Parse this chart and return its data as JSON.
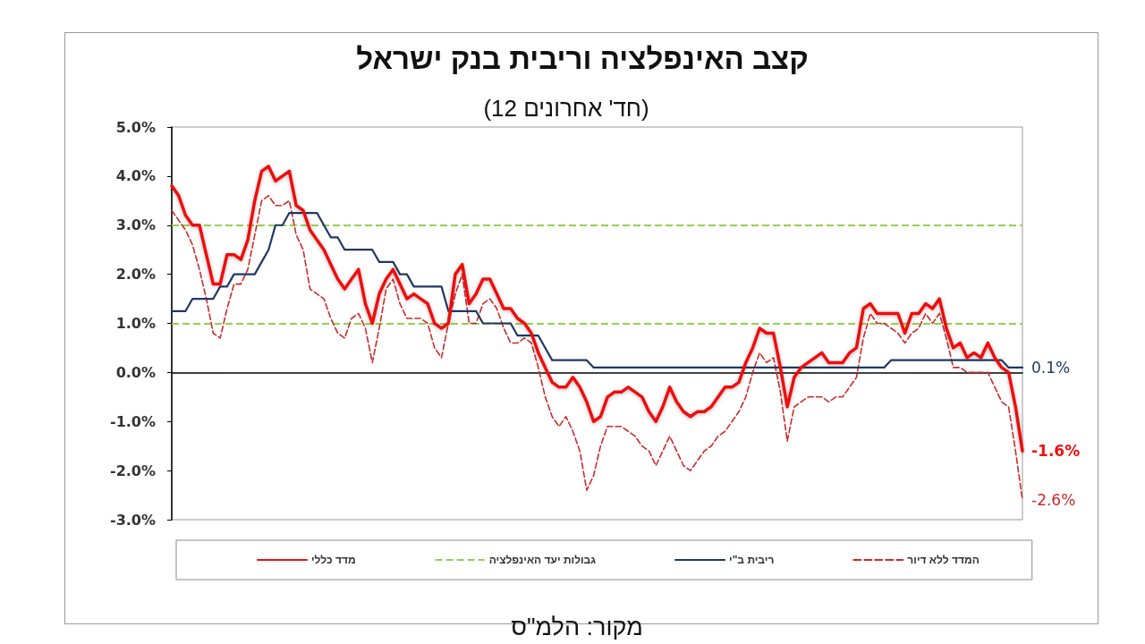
{
  "chart_data": {
    "type": "line",
    "title": "קצב האינפלציה וריבית בנק ישראל",
    "subtitle": "(12 חד' אחרונים)",
    "annotations": [
      "מקור: הלמ\"ס"
    ],
    "categories": [
      null,
      null,
      null,
      null,
      null,
      null,
      null,
      null,
      null,
      null,
      null,
      null,
      null,
      null,
      null,
      null,
      null,
      null,
      null,
      null,
      null,
      null,
      null,
      null,
      null,
      null,
      null,
      null,
      null,
      null,
      null,
      null,
      null,
      null,
      null,
      null,
      null,
      null,
      null,
      null,
      null,
      null,
      null,
      null,
      null,
      null,
      null,
      null,
      null,
      null,
      null,
      null,
      null,
      null,
      null,
      null,
      null,
      null,
      null,
      null,
      null,
      null,
      null,
      null,
      null,
      null,
      null,
      null,
      null,
      null,
      null,
      null,
      null,
      null,
      null,
      null,
      null,
      null,
      null,
      null,
      null,
      null,
      null,
      null,
      null,
      null,
      null,
      null,
      null,
      null,
      null,
      null,
      null,
      null,
      null,
      null,
      null,
      null,
      null,
      null,
      null,
      null,
      null,
      null,
      null,
      null,
      null,
      null,
      null,
      null,
      null,
      null,
      null,
      null,
      null,
      null,
      null,
      null,
      null,
      null,
      null,
      null,
      null,
      null
    ],
    "series": [
      {
        "name": "מדד כללי",
        "color": "#ee1111",
        "values": [
          3.8,
          3.6,
          3.2,
          3.0,
          3.0,
          2.4,
          1.8,
          1.8,
          2.4,
          2.4,
          2.3,
          2.7,
          3.5,
          4.1,
          4.2,
          3.9,
          4.0,
          4.1,
          3.4,
          3.3,
          2.9,
          2.7,
          2.5,
          2.2,
          1.9,
          1.7,
          1.9,
          2.1,
          1.4,
          1.0,
          1.6,
          1.9,
          2.1,
          1.8,
          1.5,
          1.6,
          1.5,
          1.4,
          1.0,
          0.9,
          1.0,
          2.0,
          2.2,
          1.4,
          1.6,
          1.9,
          1.9,
          1.6,
          1.3,
          1.3,
          1.1,
          1.0,
          0.8,
          0.4,
          0.1,
          -0.2,
          -0.3,
          -0.3,
          -0.1,
          -0.3,
          -0.6,
          -1.0,
          -0.9,
          -0.5,
          -0.4,
          -0.4,
          -0.3,
          -0.4,
          -0.5,
          -0.8,
          -1.0,
          -0.7,
          -0.3,
          -0.6,
          -0.8,
          -0.9,
          -0.8,
          -0.8,
          -0.7,
          -0.5,
          -0.3,
          -0.3,
          -0.2,
          0.2,
          0.5,
          0.9,
          0.8,
          0.8,
          0.1,
          -0.7,
          -0.1,
          0.1,
          0.2,
          0.3,
          0.4,
          0.2,
          0.2,
          0.2,
          0.4,
          0.5,
          1.3,
          1.4,
          1.2,
          1.2,
          1.2,
          1.2,
          0.8,
          1.2,
          1.2,
          1.4,
          1.3,
          1.5,
          0.9,
          0.5,
          0.6,
          0.3,
          0.4,
          0.3,
          0.6,
          0.3,
          0.1,
          0.0,
          -0.7,
          -1.6
        ],
        "value_labels": [
          null,
          null,
          null,
          null,
          null,
          null,
          null,
          null,
          null,
          null,
          null,
          null,
          null,
          null,
          null,
          null,
          null,
          null,
          null,
          null,
          null,
          null,
          null,
          null,
          null,
          null,
          null,
          null,
          null,
          null,
          null,
          null,
          null,
          null,
          null,
          null,
          null,
          null,
          null,
          null,
          null,
          null,
          null,
          null,
          null,
          null,
          null,
          null,
          null,
          null,
          null,
          null,
          null,
          null,
          null,
          null,
          null,
          null,
          null,
          null,
          null,
          null,
          null,
          null,
          null,
          null,
          null,
          null,
          null,
          null,
          null,
          null,
          null,
          null,
          null,
          null,
          null,
          null,
          null,
          null,
          null,
          null,
          null,
          null,
          null,
          null,
          null,
          null,
          null,
          null,
          null,
          null,
          null,
          null,
          null,
          null,
          null,
          null,
          null,
          null,
          null,
          null,
          null,
          null,
          null,
          null,
          null,
          null,
          null,
          null,
          null,
          null,
          null,
          null,
          null,
          null,
          null,
          null,
          null,
          null,
          null,
          null,
          null,
          "-1.6%"
        ]
      },
      {
        "name": "ריבית ב\"י",
        "color": "#1f3864",
        "values": [
          1.25,
          1.25,
          1.25,
          1.5,
          1.5,
          1.5,
          1.5,
          1.75,
          1.75,
          2.0,
          2.0,
          2.0,
          2.0,
          2.25,
          2.5,
          3.0,
          3.0,
          3.25,
          3.25,
          3.25,
          3.25,
          3.25,
          3.0,
          2.75,
          2.75,
          2.5,
          2.5,
          2.5,
          2.5,
          2.5,
          2.25,
          2.25,
          2.25,
          2.0,
          2.0,
          1.75,
          1.75,
          1.75,
          1.75,
          1.75,
          1.25,
          1.25,
          1.25,
          1.25,
          1.25,
          1.0,
          1.0,
          1.0,
          1.0,
          1.0,
          0.75,
          0.75,
          0.75,
          0.75,
          0.5,
          0.25,
          0.25,
          0.25,
          0.25,
          0.25,
          0.25,
          0.1,
          0.1,
          0.1,
          0.1,
          0.1,
          0.1,
          0.1,
          0.1,
          0.1,
          0.1,
          0.1,
          0.1,
          0.1,
          0.1,
          0.1,
          0.1,
          0.1,
          0.1,
          0.1,
          0.1,
          0.1,
          0.1,
          0.1,
          0.1,
          0.1,
          0.1,
          0.1,
          0.1,
          0.1,
          0.1,
          0.1,
          0.1,
          0.1,
          0.1,
          0.1,
          0.1,
          0.1,
          0.1,
          0.1,
          0.1,
          0.1,
          0.1,
          0.1,
          0.25,
          0.25,
          0.25,
          0.25,
          0.25,
          0.25,
          0.25,
          0.25,
          0.25,
          0.25,
          0.25,
          0.25,
          0.25,
          0.25,
          0.25,
          0.25,
          0.25,
          0.1,
          0.1,
          0.1
        ],
        "value_labels": [
          null,
          null,
          null,
          null,
          null,
          null,
          null,
          null,
          null,
          null,
          null,
          null,
          null,
          null,
          null,
          null,
          null,
          null,
          null,
          null,
          null,
          null,
          null,
          null,
          null,
          null,
          null,
          null,
          null,
          null,
          null,
          null,
          null,
          null,
          null,
          null,
          null,
          null,
          null,
          null,
          null,
          null,
          null,
          null,
          null,
          null,
          null,
          null,
          null,
          null,
          null,
          null,
          null,
          null,
          null,
          null,
          null,
          null,
          null,
          null,
          null,
          null,
          null,
          null,
          null,
          null,
          null,
          null,
          null,
          null,
          null,
          null,
          null,
          null,
          null,
          null,
          null,
          null,
          null,
          null,
          null,
          null,
          null,
          null,
          null,
          null,
          null,
          null,
          null,
          null,
          null,
          null,
          null,
          null,
          null,
          null,
          null,
          null,
          null,
          null,
          null,
          null,
          null,
          null,
          null,
          null,
          null,
          null,
          null,
          null,
          null,
          null,
          null,
          null,
          null,
          null,
          null,
          null,
          null,
          null,
          null,
          null,
          null,
          "0.1%"
        ]
      },
      {
        "name": "המדד ללא דיור",
        "color": "#cc2a2a",
        "line_style": "dashed",
        "values": [
          3.3,
          3.1,
          2.9,
          2.6,
          2.1,
          1.5,
          0.8,
          0.7,
          1.3,
          1.8,
          1.8,
          2.1,
          2.8,
          3.5,
          3.6,
          3.4,
          3.4,
          3.5,
          2.8,
          2.5,
          1.7,
          1.6,
          1.5,
          1.1,
          0.8,
          0.7,
          1.1,
          1.2,
          0.9,
          0.2,
          0.9,
          1.7,
          1.9,
          1.4,
          1.1,
          1.1,
          1.1,
          1.0,
          0.5,
          0.3,
          1.0,
          1.6,
          2.0,
          1.0,
          1.0,
          1.4,
          1.5,
          1.3,
          0.9,
          0.6,
          0.6,
          0.7,
          0.6,
          0.1,
          -0.5,
          -0.9,
          -1.1,
          -0.9,
          -1.2,
          -1.6,
          -2.4,
          -2.1,
          -1.5,
          -1.1,
          -1.1,
          -1.1,
          -1.2,
          -1.3,
          -1.5,
          -1.6,
          -1.9,
          -1.6,
          -1.3,
          -1.6,
          -1.9,
          -2.0,
          -1.8,
          -1.6,
          -1.5,
          -1.3,
          -1.2,
          -1.0,
          -0.8,
          -0.5,
          0.0,
          0.4,
          0.2,
          0.3,
          -0.4,
          -1.4,
          -0.7,
          -0.6,
          -0.5,
          -0.5,
          -0.5,
          -0.6,
          -0.5,
          -0.5,
          -0.3,
          -0.1,
          0.7,
          1.2,
          1.0,
          1.0,
          0.9,
          0.8,
          0.6,
          0.8,
          0.9,
          1.2,
          1.0,
          1.2,
          0.7,
          0.1,
          0.1,
          0.0,
          0.0,
          0.0,
          0.0,
          -0.3,
          -0.6,
          -0.7,
          -1.6,
          -2.6
        ],
        "value_labels": [
          null,
          null,
          null,
          null,
          null,
          null,
          null,
          null,
          null,
          null,
          null,
          null,
          null,
          null,
          null,
          null,
          null,
          null,
          null,
          null,
          null,
          null,
          null,
          null,
          null,
          null,
          null,
          null,
          null,
          null,
          null,
          null,
          null,
          null,
          null,
          null,
          null,
          null,
          null,
          null,
          null,
          null,
          null,
          null,
          null,
          null,
          null,
          null,
          null,
          null,
          null,
          null,
          null,
          null,
          null,
          null,
          null,
          null,
          null,
          null,
          null,
          null,
          null,
          null,
          null,
          null,
          null,
          null,
          null,
          null,
          null,
          null,
          null,
          null,
          null,
          null,
          null,
          null,
          null,
          null,
          null,
          null,
          null,
          null,
          null,
          null,
          null,
          null,
          null,
          null,
          null,
          null,
          null,
          null,
          null,
          null,
          null,
          null,
          null,
          null,
          null,
          null,
          null,
          null,
          null,
          null,
          null,
          null,
          null,
          null,
          null,
          null,
          null,
          null,
          null,
          null,
          null,
          null,
          null,
          null,
          null,
          null,
          null,
          "-2.6%"
        ]
      }
    ],
    "ylim": [
      -3,
      5
    ],
    "yticks": [
      {
        "value": -3,
        "label": "-3.0%"
      },
      {
        "value": -2,
        "label": "-2.0%"
      },
      {
        "value": -1,
        "label": "-1.0%"
      },
      {
        "value": 0,
        "label": "0.0%"
      },
      {
        "value": 1,
        "label": "1.0%"
      },
      {
        "value": 2,
        "label": "2.0%"
      },
      {
        "value": 3,
        "label": "3.0%"
      },
      {
        "value": 4,
        "label": "4.0%"
      },
      {
        "value": 5,
        "label": "5.0%"
      }
    ],
    "ref_lines": [
      {
        "axis": "y",
        "value": 1,
        "label": "גבולות יעד האינפלציה",
        "color": "#92d050",
        "line_style": "dashed"
      },
      {
        "axis": "y",
        "value": 3,
        "color": "#92d050",
        "line_style": "dashed"
      }
    ],
    "grid": false,
    "legend": "bottom",
    "marker": "none",
    "tick_labels": "y"
  }
}
